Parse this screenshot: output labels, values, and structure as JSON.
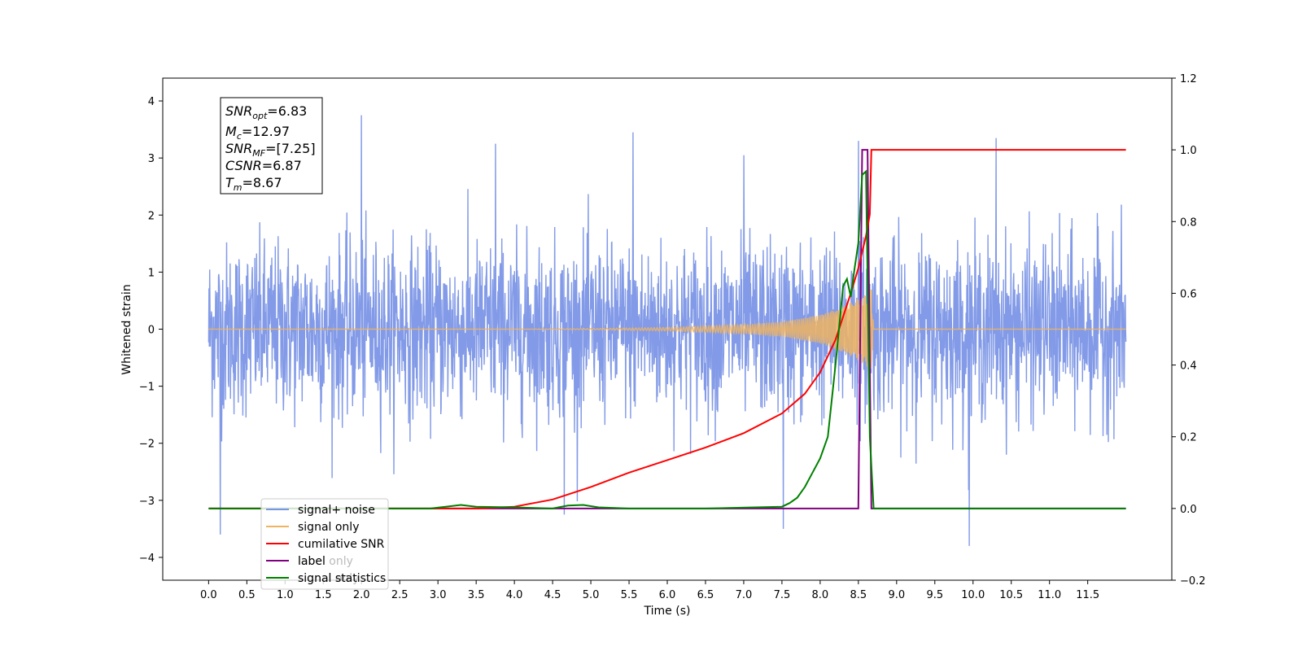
{
  "chart_data": {
    "type": "line",
    "xlabel": "Time (s)",
    "ylabel": "Whitened strain",
    "xlim": [
      -0.6,
      12.6
    ],
    "ylim": [
      -4.4,
      4.4
    ],
    "y2lim": [
      -0.2,
      1.2
    ],
    "x_ticks": [
      0.0,
      0.5,
      1.0,
      1.5,
      2.0,
      2.5,
      3.0,
      3.5,
      4.0,
      4.5,
      5.0,
      5.5,
      6.0,
      6.5,
      7.0,
      7.5,
      8.0,
      8.5,
      9.0,
      9.5,
      10.0,
      10.5,
      11.0,
      11.5
    ],
    "x_tick_labels": [
      "0.0",
      "0.5",
      "1.0",
      "1.5",
      "2.0",
      "2.5",
      "3.0",
      "3.5",
      "4.0",
      "4.5",
      "5.0",
      "5.5",
      "6.0",
      "6.5",
      "7.0",
      "7.5",
      "8.0",
      "8.5",
      "9.0",
      "9.5",
      "10.0",
      "10.5",
      "11.0",
      "11.5"
    ],
    "y_ticks": [
      -4,
      -3,
      -2,
      -1,
      0,
      1,
      2,
      3,
      4
    ],
    "y_tick_labels": [
      "−4",
      "−3",
      "−2",
      "−1",
      "0",
      "1",
      "2",
      "3",
      "4"
    ],
    "y2_ticks": [
      -0.2,
      0.0,
      0.2,
      0.4,
      0.6,
      0.8,
      1.0,
      1.2
    ],
    "y2_tick_labels": [
      "−0.2",
      "0.0",
      "0.2",
      "0.4",
      "0.6",
      "0.8",
      "1.0",
      "1.2"
    ],
    "info_box": {
      "line1": {
        "base": "SNR",
        "sub": "opt",
        "rest": "=6.83"
      },
      "line2": {
        "base": "M",
        "sub": "c",
        "rest": "=12.97"
      },
      "line3": {
        "base": "SNR",
        "sub": "MF",
        "rest": "=[7.25]"
      },
      "line4": {
        "base": "CSNR",
        "sub": "",
        "rest": "=6.87"
      },
      "line5": {
        "base": "T",
        "sub": "m",
        "rest": "=8.67"
      }
    },
    "legend": {
      "placement": "lower-left",
      "entries": [
        "signal+ noise",
        "signal only",
        "cumilative SNR",
        "label",
        "signal statistics"
      ]
    },
    "ghost_labels": [
      "label only",
      "signal only"
    ],
    "colors": {
      "noise": "#7b95e6",
      "signal": "#f0b460",
      "snr": "#ff0000",
      "label": "#800080",
      "stats": "#008000"
    },
    "series": [
      {
        "name": "signal+ noise",
        "axis": "left",
        "description_envelope_x": [
          0.0,
          12.0
        ],
        "typical_range": [
          -2.0,
          2.2
        ],
        "extremes": [
          [
            0.15,
            -3.6
          ],
          [
            2.0,
            3.75
          ],
          [
            10.3,
            3.35
          ],
          [
            9.95,
            -3.8
          ],
          [
            4.65,
            -3.25
          ],
          [
            7.52,
            -3.5
          ],
          [
            7.0,
            3.05
          ],
          [
            3.75,
            3.25
          ],
          [
            5.55,
            3.45
          ],
          [
            8.5,
            3.3
          ]
        ]
      },
      {
        "name": "signal only",
        "axis": "left",
        "x": [
          0.0,
          2.0,
          4.0,
          5.0,
          6.0,
          7.0,
          7.5,
          8.0,
          8.3,
          8.5,
          8.6,
          8.67,
          8.7,
          12.0
        ],
        "amplitude": [
          0.0,
          0.0,
          0.0,
          0.01,
          0.03,
          0.08,
          0.13,
          0.25,
          0.4,
          0.55,
          0.65,
          0.7,
          0.0,
          0.0
        ]
      },
      {
        "name": "cumilative SNR",
        "axis": "right",
        "x": [
          0.0,
          3.5,
          4.0,
          4.5,
          5.0,
          5.5,
          6.0,
          6.5,
          7.0,
          7.5,
          7.8,
          8.0,
          8.2,
          8.4,
          8.5,
          8.6,
          8.65,
          8.67,
          12.0
        ],
        "y": [
          0.0,
          0.0,
          0.005,
          0.025,
          0.06,
          0.1,
          0.135,
          0.17,
          0.21,
          0.265,
          0.32,
          0.38,
          0.47,
          0.6,
          0.67,
          0.76,
          0.82,
          1.0,
          1.0
        ]
      },
      {
        "name": "label",
        "axis": "right",
        "x": [
          0.0,
          8.5,
          8.55,
          8.62,
          8.67,
          12.0
        ],
        "y": [
          0.0,
          0.0,
          1.0,
          1.0,
          0.0,
          0.0
        ]
      },
      {
        "name": "signal statistics",
        "axis": "right",
        "x": [
          0.0,
          2.9,
          3.1,
          3.3,
          3.5,
          4.0,
          4.5,
          4.7,
          4.9,
          5.1,
          5.5,
          6.5,
          7.5,
          7.6,
          7.7,
          7.8,
          7.9,
          8.0,
          8.1,
          8.2,
          8.3,
          8.35,
          8.4,
          8.45,
          8.5,
          8.55,
          8.6,
          8.65,
          8.7,
          12.0
        ],
        "y": [
          0.0,
          0.0,
          0.005,
          0.01,
          0.005,
          0.003,
          0.0,
          0.008,
          0.01,
          0.003,
          0.0,
          0.0,
          0.005,
          0.015,
          0.03,
          0.06,
          0.1,
          0.14,
          0.2,
          0.4,
          0.62,
          0.64,
          0.59,
          0.67,
          0.74,
          0.93,
          0.94,
          0.2,
          0.0,
          0.0
        ]
      }
    ]
  }
}
